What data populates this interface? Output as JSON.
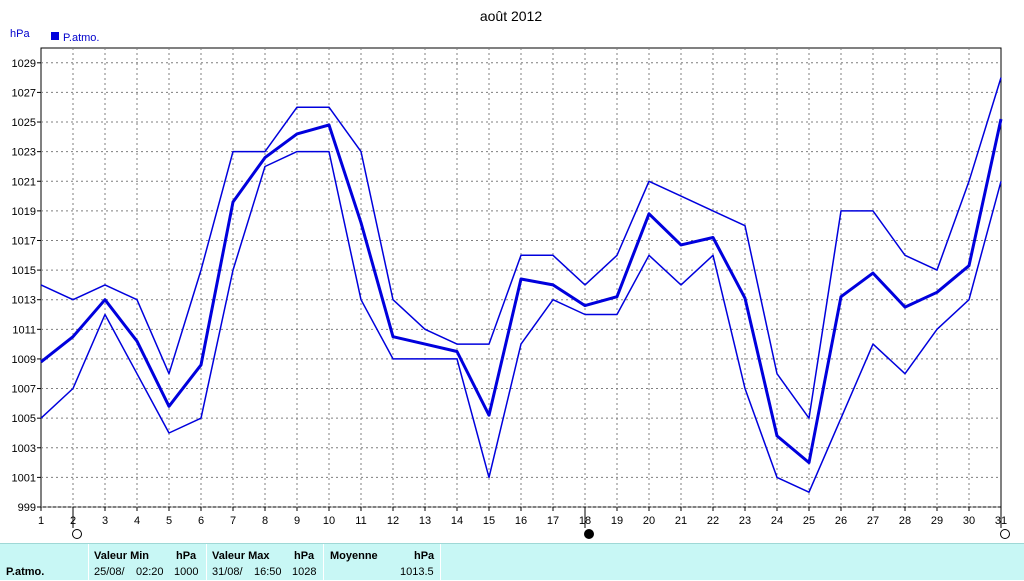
{
  "title": "août 2012",
  "y_unit": "hPa",
  "legend_label": "P.atmo.",
  "colors": {
    "series": "#0000dd",
    "grid": "#7f7f7f",
    "axis": "#000000",
    "footer_bg": "#c8f7f5"
  },
  "moon_markers": [
    {
      "day": 2,
      "phase": "full-moon",
      "icon": "open-circle-icon"
    },
    {
      "day": 18,
      "phase": "new-moon",
      "icon": "filled-circle-icon"
    },
    {
      "day": 31,
      "phase": "full-moon",
      "icon": "open-circle-icon"
    }
  ],
  "chart_data": {
    "type": "line",
    "title": "août 2012",
    "ylabel": "hPa",
    "xlim": [
      1,
      31
    ],
    "ylim": [
      999,
      1030
    ],
    "grid": true,
    "legend_position": "top-left",
    "x": [
      1,
      2,
      3,
      4,
      5,
      6,
      7,
      8,
      9,
      10,
      11,
      12,
      13,
      14,
      15,
      16,
      17,
      18,
      19,
      20,
      21,
      22,
      23,
      24,
      25,
      26,
      27,
      28,
      29,
      30,
      31
    ],
    "x_ticks": [
      "1",
      "2",
      "3",
      "4",
      "5",
      "6",
      "7",
      "8",
      "9",
      "10",
      "11",
      "12",
      "13",
      "14",
      "15",
      "16",
      "17",
      "18",
      "19",
      "20",
      "21",
      "22",
      "23",
      "24",
      "25",
      "26",
      "27",
      "28",
      "29",
      "30",
      "31"
    ],
    "y_ticks": [
      "999",
      "1001",
      "1003",
      "1005",
      "1007",
      "1009",
      "1011",
      "1013",
      "1015",
      "1017",
      "1019",
      "1021",
      "1023",
      "1025",
      "1027",
      "1029"
    ],
    "series": [
      {
        "name": "P.atmo.",
        "role": "max",
        "width": 1.5,
        "values": [
          1014,
          1013,
          1014,
          1013,
          1008,
          1015,
          1023,
          1023,
          1026,
          1026,
          1023,
          1013,
          1011,
          1010,
          1010,
          1016,
          1016,
          1014,
          1016,
          1021,
          1020,
          1019,
          1018,
          1008,
          1005,
          1019,
          1019,
          1016,
          1015,
          1021,
          1028
        ]
      },
      {
        "role": "mean",
        "width": 3,
        "values": [
          1008.8,
          1010.5,
          1013,
          1010.2,
          1005.8,
          1008.6,
          1019.6,
          1022.6,
          1024.2,
          1024.8,
          1018.2,
          1010.5,
          1010,
          1009.5,
          1005.2,
          1014.4,
          1014,
          1012.6,
          1013.2,
          1018.8,
          1016.7,
          1017.2,
          1013.1,
          1003.8,
          1002,
          1013.2,
          1014.8,
          1012.5,
          1013.5,
          1015.3,
          1025.2
        ]
      },
      {
        "role": "min",
        "width": 1.5,
        "values": [
          1005,
          1007,
          1012,
          1008,
          1004,
          1005,
          1015,
          1022,
          1023,
          1023,
          1013,
          1009,
          1009,
          1009,
          1001,
          1010,
          1013,
          1012,
          1012,
          1016,
          1014,
          1016,
          1007,
          1001,
          1000,
          1005,
          1010,
          1008,
          1011,
          1013,
          1021
        ]
      }
    ]
  },
  "footer": {
    "row_label": "P.atmo.",
    "min": {
      "header": "Valeur Min",
      "unit": "hPa",
      "date": "25/08/",
      "time": "02:20",
      "value": "1000"
    },
    "max": {
      "header": "Valeur Max",
      "unit": "hPa",
      "date": "31/08/",
      "time": "16:50",
      "value": "1028"
    },
    "avg": {
      "header": "Moyenne",
      "unit": "hPa",
      "value": "1013.5"
    }
  }
}
